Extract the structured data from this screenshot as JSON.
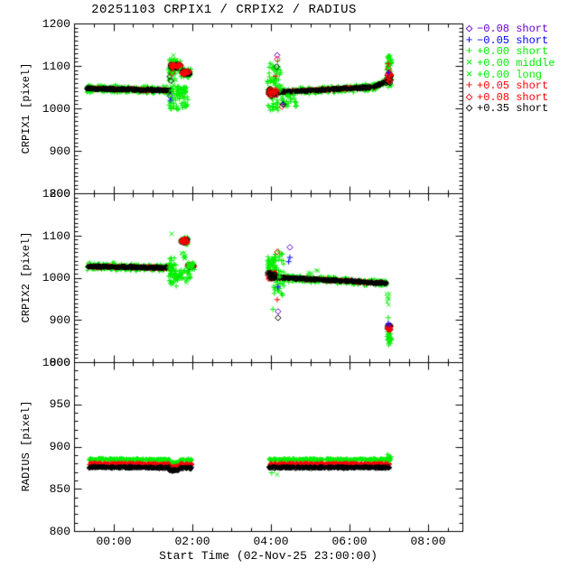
{
  "chart_data": {
    "type": "scatter",
    "title": "20251103 CRPIX1 / CRPIX2 / RADIUS",
    "x_axis": {
      "title": "Start Time (02-Nov-25 23:00:00)",
      "epoch_label": "02-Nov-25 23:00:00",
      "tick_labels": [
        "00:00",
        "02:00",
        "04:00",
        "06:00",
        "08:00"
      ],
      "major_hours": [
        1,
        3,
        5,
        7,
        9
      ],
      "minor_step_hours": 0.5,
      "range_hours": [
        0,
        9.86
      ],
      "grid": false
    },
    "legend_position": "top-right-outside",
    "series": [
      {
        "label": "−0.08 short",
        "color": "#6600cc",
        "symbol": "diamond",
        "symbol_char": "◇"
      },
      {
        "label": "−0.05 short",
        "color": "#0000ff",
        "symbol": "plus",
        "symbol_char": "+"
      },
      {
        "label": "+0.00 short",
        "color": "#00ee00",
        "symbol": "plus",
        "symbol_char": "+"
      },
      {
        "label": "+0.00 middle",
        "color": "#00ee00",
        "symbol": "cross",
        "symbol_char": "×"
      },
      {
        "label": "+0.00 long",
        "color": "#00ee00",
        "symbol": "cross",
        "symbol_char": "×"
      },
      {
        "label": "+0.05 short",
        "color": "#ff0000",
        "symbol": "plus",
        "symbol_char": "+"
      },
      {
        "label": "+0.08 short",
        "color": "#ff0000",
        "symbol": "diamond",
        "symbol_char": "◇"
      },
      {
        "label": "+0.35 short",
        "color": "#000000",
        "symbol": "diamond",
        "symbol_char": "◇"
      }
    ],
    "panels": [
      {
        "name": "CRPIX1",
        "ylabel": "CRPIX1 [pixel]",
        "ymin": 800,
        "ymax": 1200,
        "ymajor": 100,
        "yminor": 10,
        "ytick_labels": [
          "1200",
          "1100",
          "1000",
          "900",
          "800"
        ],
        "bands": [
          {
            "t0": 0.32,
            "t1": 2.48,
            "v0": 1047,
            "v1": 1042,
            "dips": [],
            "layers": [
              {
                "s": 2,
                "dv": 0,
                "j": 8,
                "n": 420
              },
              {
                "s": 5,
                "dv": 0,
                "j": 3.5,
                "n": 330
              },
              {
                "s": 1,
                "dv": 0,
                "j": 3,
                "n": 26
              },
              {
                "s": 7,
                "dv": 0,
                "j": 3,
                "n": 330
              }
            ]
          },
          {
            "t0": 5.11,
            "t1": 7.6,
            "v0": 1038,
            "v1": 1050,
            "dips": [],
            "layers": [
              {
                "s": 2,
                "dv": 0,
                "j": 8,
                "n": 380
              },
              {
                "s": 5,
                "dv": 0,
                "j": 3.5,
                "n": 300
              },
              {
                "s": 1,
                "dv": 0,
                "j": 3,
                "n": 22
              },
              {
                "s": 7,
                "dv": 0,
                "j": 3,
                "n": 300
              }
            ]
          },
          {
            "t0": 7.6,
            "t1": 7.94,
            "v0": 1050,
            "v1": 1064,
            "dips": [],
            "layers": [
              {
                "s": 2,
                "dv": 0,
                "j": 7,
                "n": 70
              },
              {
                "s": 5,
                "dv": 0,
                "j": 3.2,
                "n": 52
              },
              {
                "s": 1,
                "dv": 0,
                "j": 3,
                "n": 5
              },
              {
                "s": 7,
                "dv": 0,
                "j": 2.8,
                "n": 52
              }
            ]
          }
        ],
        "boxes": [
          {
            "s": 2,
            "t0": 2.4,
            "t1": 2.58,
            "vmin": 998,
            "vmax": 1118,
            "n": 48
          },
          {
            "s": 4,
            "t0": 2.42,
            "t1": 2.62,
            "vmin": 1008,
            "vmax": 1122,
            "n": 14
          },
          {
            "s": 2,
            "t0": 2.44,
            "t1": 2.72,
            "vmin": 1086,
            "vmax": 1112,
            "n": 38
          },
          {
            "s": 7,
            "t0": 2.45,
            "t1": 2.71,
            "vmin": 1094,
            "vmax": 1104,
            "n": 42
          },
          {
            "s": 6,
            "t0": 2.45,
            "t1": 2.71,
            "vmin": 1095,
            "vmax": 1105,
            "n": 26
          },
          {
            "s": 5,
            "t0": 2.47,
            "t1": 2.7,
            "vmin": 1094,
            "vmax": 1103,
            "n": 14
          },
          {
            "s": 2,
            "t0": 2.7,
            "t1": 2.97,
            "vmin": 1072,
            "vmax": 1094,
            "n": 30
          },
          {
            "s": 7,
            "t0": 2.74,
            "t1": 2.94,
            "vmin": 1079,
            "vmax": 1089,
            "n": 38
          },
          {
            "s": 6,
            "t0": 2.74,
            "t1": 2.94,
            "vmin": 1080,
            "vmax": 1090,
            "n": 20
          },
          {
            "s": 2,
            "t0": 2.6,
            "t1": 2.86,
            "vmin": 1028,
            "vmax": 1052,
            "n": 36
          },
          {
            "s": 2,
            "t0": 2.52,
            "t1": 2.96,
            "vmin": 996,
            "vmax": 1028,
            "n": 22
          },
          {
            "s": 2,
            "t0": 4.91,
            "t1": 5.25,
            "vmin": 995,
            "vmax": 1112,
            "n": 70
          },
          {
            "s": 4,
            "t0": 4.95,
            "t1": 5.3,
            "vmin": 1000,
            "vmax": 1105,
            "n": 16
          },
          {
            "s": 7,
            "t0": 4.93,
            "t1": 5.16,
            "vmin": 1028,
            "vmax": 1046,
            "n": 30
          },
          {
            "s": 6,
            "t0": 4.93,
            "t1": 5.16,
            "vmin": 1030,
            "vmax": 1048,
            "n": 20
          },
          {
            "s": 2,
            "t0": 5.25,
            "t1": 5.65,
            "vmin": 1002,
            "vmax": 1036,
            "n": 26
          },
          {
            "s": 2,
            "t0": 7.93,
            "t1": 8.08,
            "vmin": 1050,
            "vmax": 1128,
            "n": 44
          },
          {
            "s": 4,
            "t0": 7.95,
            "t1": 8.06,
            "vmin": 1058,
            "vmax": 1120,
            "n": 12
          },
          {
            "s": 7,
            "t0": 7.93,
            "t1": 8.05,
            "vmin": 1058,
            "vmax": 1080,
            "n": 26
          },
          {
            "s": 6,
            "t0": 7.93,
            "t1": 8.05,
            "vmin": 1062,
            "vmax": 1084,
            "n": 18
          }
        ],
        "points": [
          {
            "s": 4,
            "t": 2.52,
            "v": 1125
          },
          {
            "s": 7,
            "t": 2.43,
            "v": 1075
          },
          {
            "s": 7,
            "t": 2.46,
            "v": 1065
          },
          {
            "s": 6,
            "t": 2.49,
            "v": 1083
          },
          {
            "s": 0,
            "t": 2.44,
            "v": 1029
          },
          {
            "s": 1,
            "t": 2.45,
            "v": 1019
          },
          {
            "s": 2,
            "t": 2.46,
            "v": 1012
          },
          {
            "s": 2,
            "t": 2.47,
            "v": 999
          },
          {
            "s": 0,
            "t": 5.16,
            "v": 1125
          },
          {
            "s": 6,
            "t": 5.16,
            "v": 1116
          },
          {
            "s": 7,
            "t": 5.15,
            "v": 1098
          },
          {
            "s": 5,
            "t": 5.12,
            "v": 1076
          },
          {
            "s": 1,
            "t": 5.3,
            "v": 1010
          },
          {
            "s": 6,
            "t": 5.28,
            "v": 1004
          },
          {
            "s": 7,
            "t": 5.31,
            "v": 1009
          },
          {
            "s": 1,
            "t": 7.99,
            "v": 1085
          },
          {
            "s": 6,
            "t": 7.99,
            "v": 1094
          },
          {
            "s": 5,
            "t": 7.98,
            "v": 1105
          }
        ]
      },
      {
        "name": "CRPIX2",
        "ylabel": "CRPIX2 [pixel]",
        "ymin": 800,
        "ymax": 1200,
        "ymajor": 100,
        "yminor": 10,
        "ytick_labels": [
          "1200",
          "1100",
          "1000",
          "900",
          "800"
        ],
        "bands": [
          {
            "t0": 0.32,
            "t1": 2.48,
            "v0": 1027,
            "v1": 1023,
            "dips": [],
            "layers": [
              {
                "s": 2,
                "dv": 0,
                "j": 8,
                "n": 420
              },
              {
                "s": 5,
                "dv": 0,
                "j": 3.5,
                "n": 330
              },
              {
                "s": 1,
                "dv": 0,
                "j": 3,
                "n": 26
              },
              {
                "s": 7,
                "dv": 0,
                "j": 3,
                "n": 330
              }
            ]
          },
          {
            "t0": 5.11,
            "t1": 7.95,
            "v0": 1001,
            "v1": 987,
            "dips": [],
            "layers": [
              {
                "s": 2,
                "dv": 0,
                "j": 8,
                "n": 430
              },
              {
                "s": 5,
                "dv": 0,
                "j": 3.5,
                "n": 340
              },
              {
                "s": 1,
                "dv": 0,
                "j": 3,
                "n": 26
              },
              {
                "s": 7,
                "dv": 0,
                "j": 3,
                "n": 340
              }
            ]
          }
        ],
        "boxes": [
          {
            "s": 2,
            "t0": 2.4,
            "t1": 2.6,
            "vmin": 978,
            "vmax": 1050,
            "n": 42
          },
          {
            "s": 4,
            "t0": 2.72,
            "t1": 2.84,
            "vmin": 1042,
            "vmax": 1062,
            "n": 8
          },
          {
            "s": 2,
            "t0": 2.7,
            "t1": 2.9,
            "vmin": 1078,
            "vmax": 1096,
            "n": 24
          },
          {
            "s": 7,
            "t0": 2.72,
            "t1": 2.88,
            "vmin": 1082,
            "vmax": 1092,
            "n": 30
          },
          {
            "s": 6,
            "t0": 2.72,
            "t1": 2.88,
            "vmin": 1083,
            "vmax": 1093,
            "n": 18
          },
          {
            "s": 2,
            "t0": 2.45,
            "t1": 2.96,
            "vmin": 993,
            "vmax": 1018,
            "n": 38
          },
          {
            "s": 4,
            "t0": 2.55,
            "t1": 2.86,
            "vmin": 987,
            "vmax": 1007,
            "n": 8
          },
          {
            "s": 7,
            "t0": 2.88,
            "t1": 3.05,
            "vmin": 1024,
            "vmax": 1032,
            "n": 26
          },
          {
            "s": 6,
            "t0": 2.88,
            "t1": 3.05,
            "vmin": 1025,
            "vmax": 1033,
            "n": 15
          },
          {
            "s": 2,
            "t0": 2.86,
            "t1": 3.06,
            "vmin": 1019,
            "vmax": 1037,
            "n": 20
          },
          {
            "s": 2,
            "t0": 4.91,
            "t1": 5.14,
            "vmin": 1010,
            "vmax": 1052,
            "n": 40
          },
          {
            "s": 2,
            "t0": 5.05,
            "t1": 5.35,
            "vmin": 958,
            "vmax": 1066,
            "n": 45
          },
          {
            "s": 6,
            "t0": 4.91,
            "t1": 5.11,
            "vmin": 997,
            "vmax": 1013,
            "n": 28
          },
          {
            "s": 7,
            "t0": 4.91,
            "t1": 5.11,
            "vmin": 996,
            "vmax": 1012,
            "n": 28
          },
          {
            "s": 4,
            "t0": 5.9,
            "t1": 6.2,
            "vmin": 1006,
            "vmax": 1018,
            "n": 6
          },
          {
            "s": 4,
            "t0": 7.93,
            "t1": 8.04,
            "vmin": 935,
            "vmax": 962,
            "n": 7
          },
          {
            "s": 2,
            "t0": 7.95,
            "t1": 8.06,
            "vmin": 852,
            "vmax": 880,
            "n": 26
          },
          {
            "s": 7,
            "t0": 7.96,
            "t1": 8.05,
            "vmin": 877,
            "vmax": 888,
            "n": 14
          },
          {
            "s": 6,
            "t0": 7.96,
            "t1": 8.05,
            "vmin": 875,
            "vmax": 886,
            "n": 12
          },
          {
            "s": 2,
            "t0": 7.97,
            "t1": 8.04,
            "vmin": 838,
            "vmax": 853,
            "n": 6
          }
        ],
        "points": [
          {
            "s": 4,
            "t": 2.48,
            "v": 1104
          },
          {
            "s": 0,
            "t": 5.48,
            "v": 1072
          },
          {
            "s": 1,
            "t": 5.48,
            "v": 1048
          },
          {
            "s": 1,
            "t": 5.45,
            "v": 1038
          },
          {
            "s": 6,
            "t": 5.16,
            "v": 1061
          },
          {
            "s": 1,
            "t": 5.18,
            "v": 978
          },
          {
            "s": 5,
            "t": 5.16,
            "v": 948
          },
          {
            "s": 0,
            "t": 5.18,
            "v": 920
          },
          {
            "s": 7,
            "t": 5.18,
            "v": 905
          },
          {
            "s": 2,
            "t": 5.05,
            "v": 925
          },
          {
            "s": 2,
            "t": 7.98,
            "v": 905
          },
          {
            "s": 0,
            "t": 7.99,
            "v": 889
          },
          {
            "s": 1,
            "t": 7.98,
            "v": 891
          },
          {
            "s": 4,
            "t": 8.0,
            "v": 849
          }
        ]
      },
      {
        "name": "RADIUS",
        "ylabel": "RADIUS [pixel]",
        "ymin": 800,
        "ymax": 1000,
        "ymajor": 50,
        "yminor": 10,
        "ytick_labels": [
          "1000",
          "950",
          "900",
          "850",
          "800"
        ],
        "bands": [
          {
            "t0": 0.37,
            "t1": 3.0,
            "v0": 879.5,
            "v1": 878.5,
            "dips": [
              {
                "t0": 2.42,
                "t1": 2.68,
                "dv": -3
              }
            ],
            "layers": [
              {
                "s": 2,
                "dv": 5.5,
                "j": 1.6,
                "n": 430
              },
              {
                "s": 5,
                "dv": 0.5,
                "j": 1.3,
                "n": 380
              },
              {
                "s": 1,
                "dv": -3.2,
                "j": 1.0,
                "n": 55
              },
              {
                "s": 7,
                "dv": -3.8,
                "j": 1.4,
                "n": 380
              }
            ]
          },
          {
            "t0": 4.95,
            "t1": 8.03,
            "v0": 879,
            "v1": 879,
            "dips": [],
            "layers": [
              {
                "s": 2,
                "dv": 5.5,
                "j": 1.6,
                "n": 470
              },
              {
                "s": 5,
                "dv": 0.5,
                "j": 1.3,
                "n": 420
              },
              {
                "s": 1,
                "dv": -3.2,
                "j": 1.0,
                "n": 60
              },
              {
                "s": 7,
                "dv": -3.8,
                "j": 1.4,
                "n": 420
              }
            ]
          }
        ],
        "boxes": [
          {
            "s": 2,
            "t0": 7.95,
            "t1": 8.05,
            "vmin": 882,
            "vmax": 891,
            "n": 12
          }
        ],
        "points": [
          {
            "s": 4,
            "t": 5.16,
            "v": 867
          },
          {
            "s": 2,
            "t": 5.02,
            "v": 869
          }
        ]
      }
    ]
  }
}
